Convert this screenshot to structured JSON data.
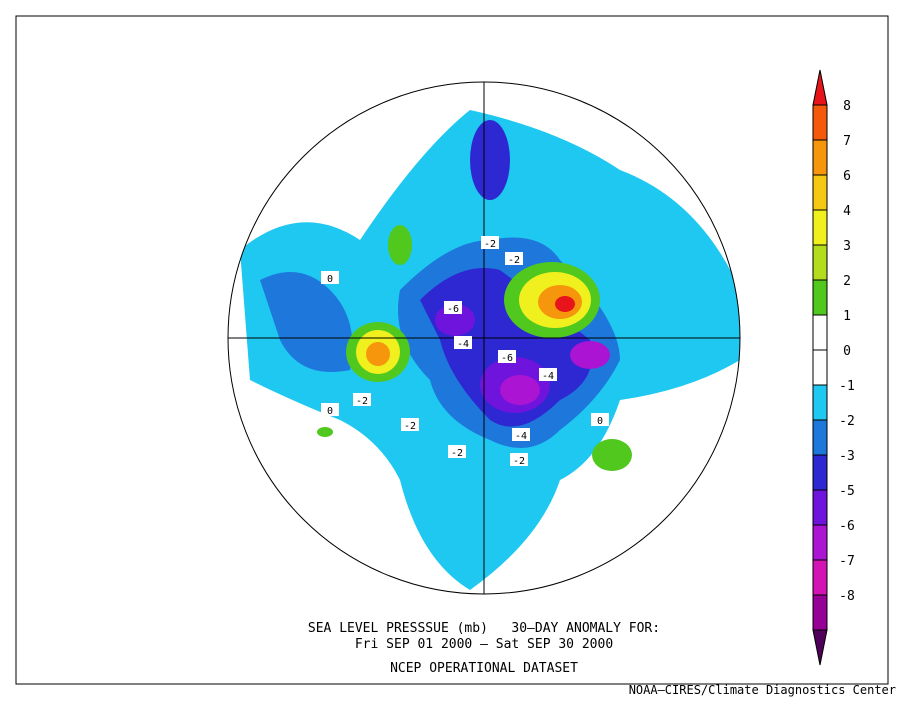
{
  "title_lines": [
    "SEA LEVEL PRESSSUE (mb)   30–DAY ANOMALY FOR:",
    "Fri SEP 01 2000 – Sat SEP 30 2000",
    "NCEP OPERATIONAL DATASET"
  ],
  "credit": "NOAA–CIRES/Climate Diagnostics Center",
  "colorbar": {
    "labels": [
      "8",
      "7",
      "6",
      "4",
      "3",
      "2",
      "1",
      "0",
      "-1",
      "-2",
      "-3",
      "-5",
      "-6",
      "-7",
      "-8"
    ],
    "colors": [
      "#e8141b",
      "#f55a0c",
      "#f5960c",
      "#f5c814",
      "#f0f01e",
      "#b4dc1e",
      "#50c81e",
      "#ffffff",
      "#ffffff",
      "#1ec8f0",
      "#1e78dc",
      "#2d28d2",
      "#6e14dc",
      "#aa14d2",
      "#d214b4",
      "#960096",
      "#50005a"
    ]
  },
  "map": {
    "labels": [
      "-6",
      "-4",
      "-6",
      "-4",
      "-4",
      "-2",
      "-2",
      "-2",
      "-2",
      "-2",
      "-2",
      "0",
      "0",
      "0"
    ]
  }
}
